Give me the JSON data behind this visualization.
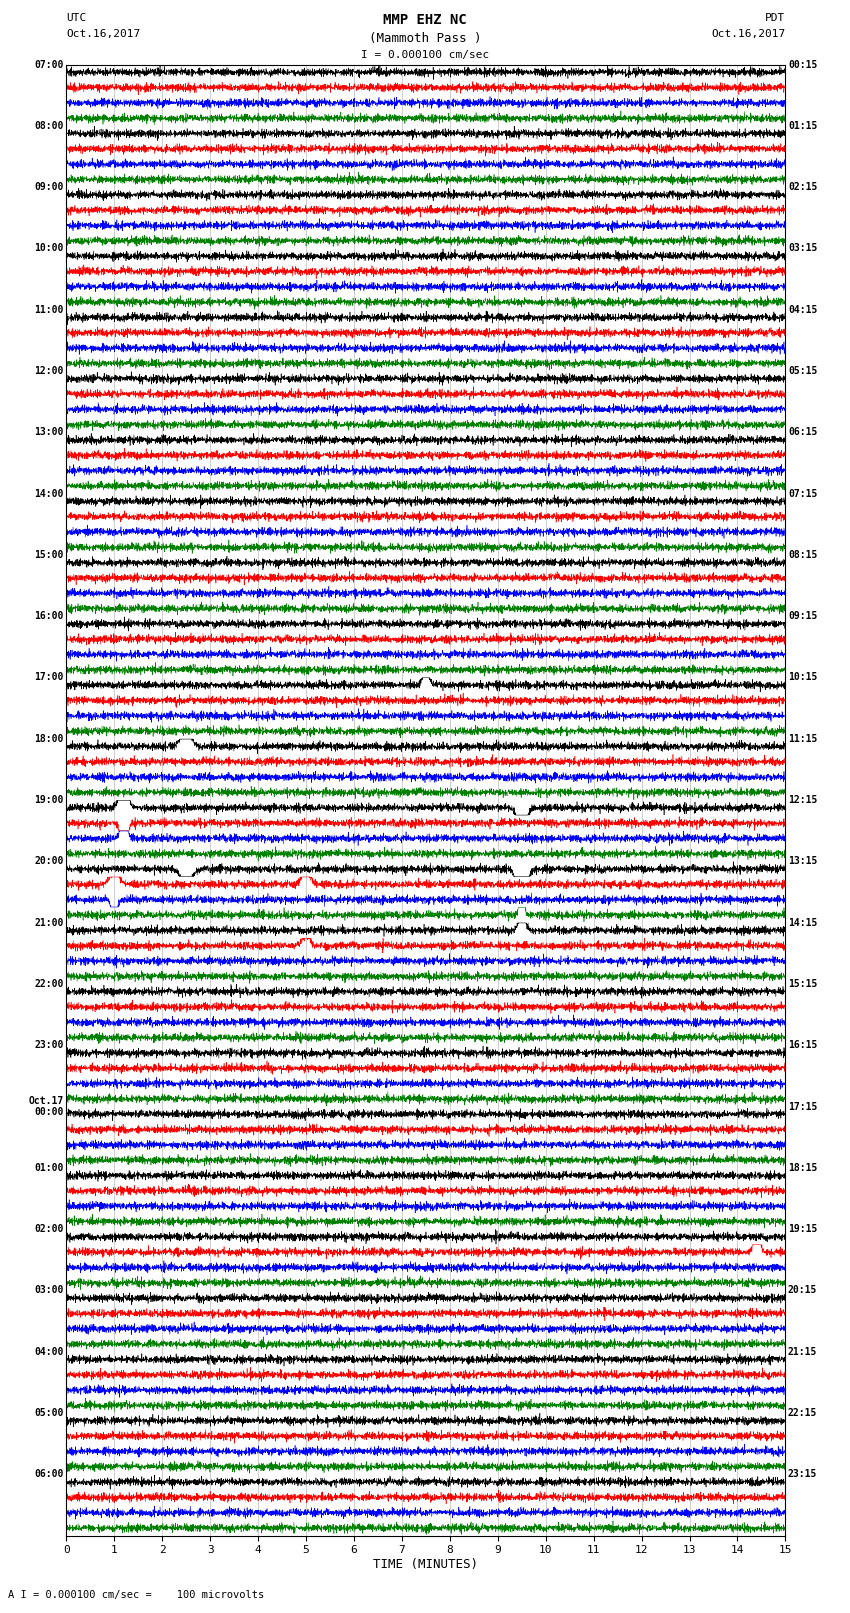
{
  "title_line1": "MMP EHZ NC",
  "title_line2": "(Mammoth Pass )",
  "scale_label": "I = 0.000100 cm/sec",
  "footer_label": "A I = 0.000100 cm/sec =    100 microvolts",
  "utc_label1": "UTC",
  "utc_label2": "Oct.16,2017",
  "pdt_label1": "PDT",
  "pdt_label2": "Oct.16,2017",
  "xlabel": "TIME (MINUTES)",
  "xlim": [
    0,
    15
  ],
  "xticks": [
    0,
    1,
    2,
    3,
    4,
    5,
    6,
    7,
    8,
    9,
    10,
    11,
    12,
    13,
    14,
    15
  ],
  "background_color": "#ffffff",
  "trace_colors": [
    "black",
    "red",
    "blue",
    "green"
  ],
  "left_labels": [
    [
      "07:00",
      0
    ],
    [
      "08:00",
      4
    ],
    [
      "09:00",
      8
    ],
    [
      "10:00",
      12
    ],
    [
      "11:00",
      16
    ],
    [
      "12:00",
      20
    ],
    [
      "13:00",
      24
    ],
    [
      "14:00",
      28
    ],
    [
      "15:00",
      32
    ],
    [
      "16:00",
      36
    ],
    [
      "17:00",
      40
    ],
    [
      "18:00",
      44
    ],
    [
      "19:00",
      48
    ],
    [
      "20:00",
      52
    ],
    [
      "21:00",
      56
    ],
    [
      "22:00",
      60
    ],
    [
      "23:00",
      64
    ],
    [
      "Oct.17\n00:00",
      68
    ],
    [
      "01:00",
      72
    ],
    [
      "02:00",
      76
    ],
    [
      "03:00",
      80
    ],
    [
      "04:00",
      84
    ],
    [
      "05:00",
      88
    ],
    [
      "06:00",
      92
    ]
  ],
  "right_labels": [
    [
      "00:15",
      0
    ],
    [
      "01:15",
      4
    ],
    [
      "02:15",
      8
    ],
    [
      "03:15",
      12
    ],
    [
      "04:15",
      16
    ],
    [
      "05:15",
      20
    ],
    [
      "06:15",
      24
    ],
    [
      "07:15",
      28
    ],
    [
      "08:15",
      32
    ],
    [
      "09:15",
      36
    ],
    [
      "10:15",
      40
    ],
    [
      "11:15",
      44
    ],
    [
      "12:15",
      48
    ],
    [
      "13:15",
      52
    ],
    [
      "14:15",
      56
    ],
    [
      "15:15",
      60
    ],
    [
      "16:15",
      64
    ],
    [
      "17:15",
      68
    ],
    [
      "18:15",
      72
    ],
    [
      "19:15",
      76
    ],
    [
      "20:15",
      80
    ],
    [
      "21:15",
      84
    ],
    [
      "22:15",
      88
    ],
    [
      "23:15",
      92
    ]
  ],
  "n_rows": 96,
  "n_points": 3000,
  "noise_amp": 0.32,
  "vline_color": "#aaaaaa",
  "vline_positions": [
    1,
    2,
    3,
    4,
    5,
    6,
    7,
    8,
    9,
    10,
    11,
    12,
    13,
    14
  ]
}
